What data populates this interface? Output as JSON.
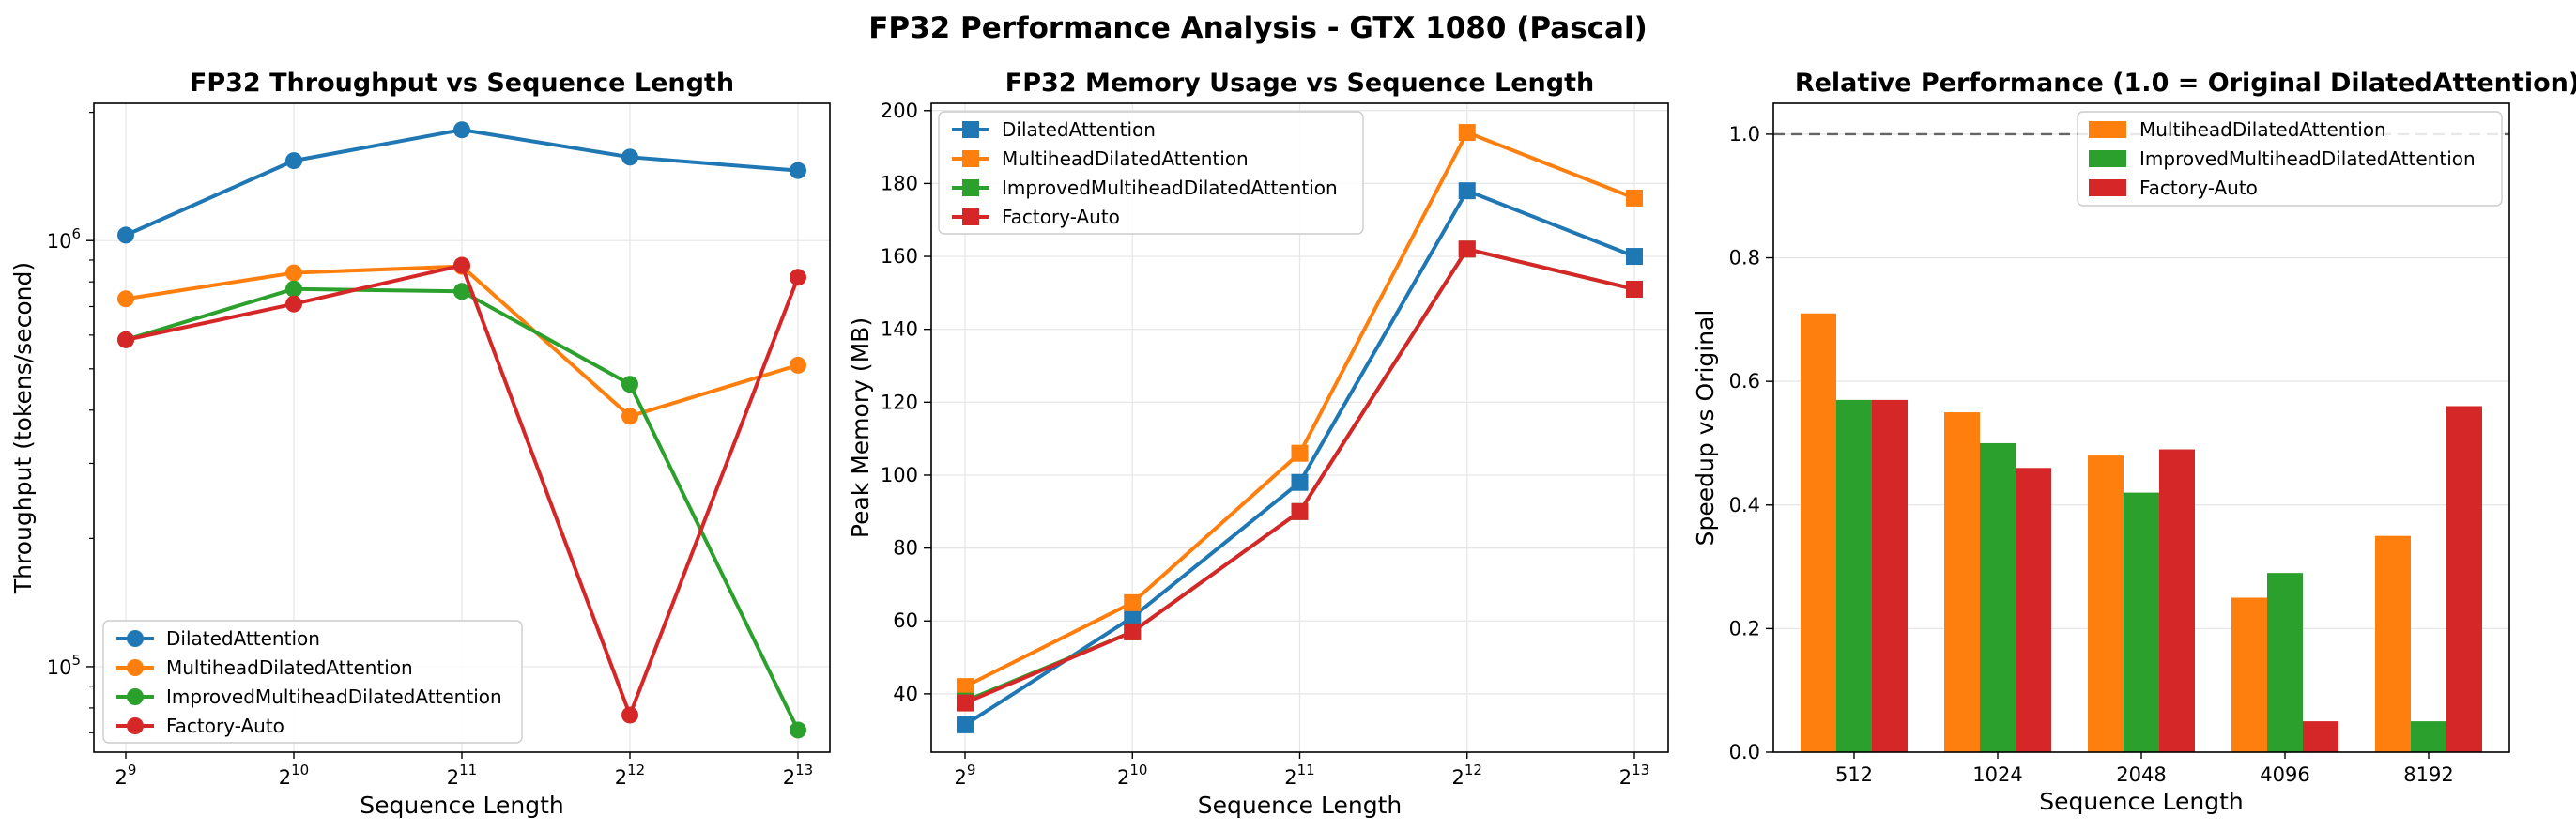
{
  "figure": {
    "title": "FP32 Performance Analysis - GTX 1080 (Pascal)"
  },
  "colors": {
    "blue": "#1f77b4",
    "orange": "#ff7f0e",
    "green": "#2ca02c",
    "red": "#d62728",
    "grid": "#e6e6e6",
    "refline": "#666666"
  },
  "chart_data": [
    {
      "type": "line",
      "title": "FP32 Throughput vs Sequence Length",
      "xlabel": "Sequence Length",
      "ylabel": "Throughput (tokens/second)",
      "x": [
        512,
        1024,
        2048,
        4096,
        8192
      ],
      "x_scale": "log2",
      "x_tick_labels": [
        {
          "base": "2",
          "exp": "9"
        },
        {
          "base": "2",
          "exp": "10"
        },
        {
          "base": "2",
          "exp": "11"
        },
        {
          "base": "2",
          "exp": "12"
        },
        {
          "base": "2",
          "exp": "13"
        }
      ],
      "y_scale": "log10",
      "ylim": [
        63000,
        2100000
      ],
      "y_tick_labels": [
        {
          "value": 100000,
          "base": "10",
          "exp": "5"
        },
        {
          "value": 1000000,
          "base": "10",
          "exp": "6"
        }
      ],
      "marker": "circle",
      "grid": true,
      "legend_position": "lower-left",
      "series": [
        {
          "name": "DilatedAttention",
          "color": "#1f77b4",
          "values": [
            1030000,
            1540000,
            1820000,
            1570000,
            1460000
          ]
        },
        {
          "name": "MultiheadDilatedAttention",
          "color": "#ff7f0e",
          "values": [
            730000,
            840000,
            870000,
            387000,
            510000
          ]
        },
        {
          "name": "ImprovedMultiheadDilatedAttention",
          "color": "#2ca02c",
          "values": [
            585000,
            770000,
            760000,
            460000,
            71000
          ]
        },
        {
          "name": "Factory-Auto",
          "color": "#d62728",
          "values": [
            585000,
            710000,
            875000,
            77000,
            820000
          ]
        }
      ]
    },
    {
      "type": "line",
      "title": "FP32 Memory Usage vs Sequence Length",
      "xlabel": "Sequence Length",
      "ylabel": "Peak Memory (MB)",
      "x": [
        512,
        1024,
        2048,
        4096,
        8192
      ],
      "x_scale": "log2",
      "x_tick_labels": [
        {
          "base": "2",
          "exp": "9"
        },
        {
          "base": "2",
          "exp": "10"
        },
        {
          "base": "2",
          "exp": "11"
        },
        {
          "base": "2",
          "exp": "12"
        },
        {
          "base": "2",
          "exp": "13"
        }
      ],
      "ylim": [
        24,
        202
      ],
      "y_ticks": [
        40,
        60,
        80,
        100,
        120,
        140,
        160,
        180,
        200
      ],
      "marker": "square",
      "grid": true,
      "legend_position": "upper-left",
      "series": [
        {
          "name": "DilatedAttention",
          "color": "#1f77b4",
          "values": [
            31.5,
            61,
            98,
            178,
            160
          ]
        },
        {
          "name": "MultiheadDilatedAttention",
          "color": "#ff7f0e",
          "values": [
            42,
            65,
            106,
            194,
            176
          ]
        },
        {
          "name": "ImprovedMultiheadDilatedAttention",
          "color": "#2ca02c",
          "values": [
            38,
            57,
            90,
            162,
            151
          ]
        },
        {
          "name": "Factory-Auto",
          "color": "#d62728",
          "values": [
            37.5,
            57,
            90,
            162,
            151
          ]
        }
      ]
    },
    {
      "type": "bar",
      "title": "Relative Performance (1.0 = Original DilatedAttention)",
      "xlabel": "Sequence Length",
      "ylabel": "Speedup vs Original",
      "categories": [
        "512",
        "1024",
        "2048",
        "4096",
        "8192"
      ],
      "ylim": [
        0,
        1.05
      ],
      "y_ticks": [
        0.0,
        0.2,
        0.4,
        0.6,
        0.8,
        1.0
      ],
      "y_tick_labels": [
        "0.0",
        "0.2",
        "0.4",
        "0.6",
        "0.8",
        "1.0"
      ],
      "reference_line": 1.0,
      "grid": true,
      "legend_position": "upper-right",
      "series": [
        {
          "name": "MultiheadDilatedAttention",
          "color": "#ff7f0e",
          "values": [
            0.71,
            0.55,
            0.48,
            0.25,
            0.35
          ]
        },
        {
          "name": "ImprovedMultiheadDilatedAttention",
          "color": "#2ca02c",
          "values": [
            0.57,
            0.5,
            0.42,
            0.29,
            0.05
          ]
        },
        {
          "name": "Factory-Auto",
          "color": "#d62728",
          "values": [
            0.57,
            0.46,
            0.49,
            0.05,
            0.56
          ]
        }
      ]
    }
  ]
}
